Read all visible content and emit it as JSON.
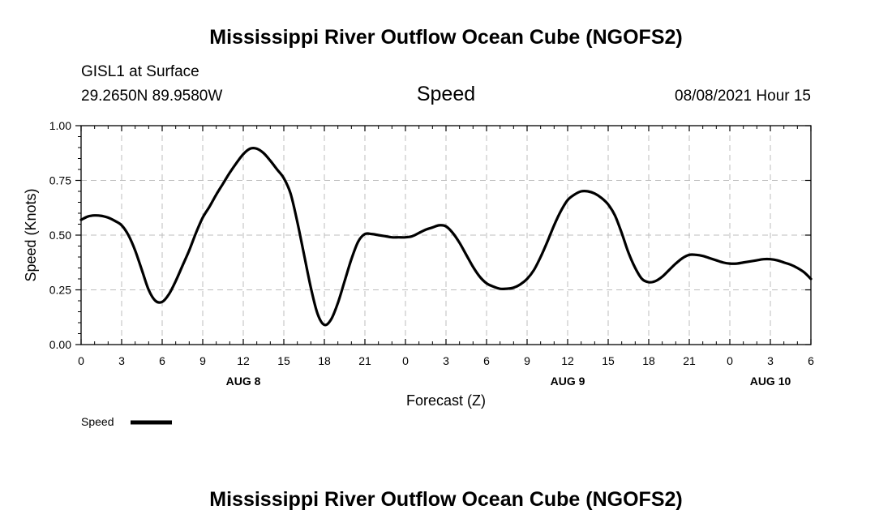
{
  "page": {
    "title": "Mississippi River Outflow Ocean Cube (NGOFS2)",
    "footer_title": "Mississippi River Outflow Ocean Cube (NGOFS2)",
    "station": "GISL1 at Surface",
    "coords": "29.2650N  89.9580W",
    "datetime": "08/08/2021 Hour 15"
  },
  "chart_data": {
    "type": "line",
    "title": "Speed",
    "xlabel": "Forecast (Z)",
    "ylabel": "Speed (Knots)",
    "xlim": [
      0,
      54
    ],
    "ylim": [
      0,
      1
    ],
    "grid": true,
    "legend": "bottom-left",
    "y_ticks": [
      0,
      0.25,
      0.5,
      0.75,
      1.0
    ],
    "y_tick_labels": [
      "0.00",
      "0.25",
      "0.50",
      "0.75",
      "1.00"
    ],
    "x_ticks": [
      0,
      3,
      6,
      9,
      12,
      15,
      18,
      21,
      24,
      27,
      30,
      33,
      36,
      39,
      42,
      45,
      48,
      51,
      54
    ],
    "x_tick_labels": [
      "0",
      "3",
      "6",
      "9",
      "12",
      "15",
      "18",
      "21",
      "0",
      "3",
      "6",
      "9",
      "12",
      "15",
      "18",
      "21",
      "0",
      "3",
      "6"
    ],
    "date_labels": [
      {
        "x": 12,
        "label": "AUG 8"
      },
      {
        "x": 36,
        "label": "AUG 9"
      },
      {
        "x": 51,
        "label": "AUG 10"
      }
    ],
    "series": [
      {
        "name": "Speed",
        "color": "#000000",
        "x": [
          0,
          0.5,
          1,
          1.5,
          2,
          2.5,
          3,
          3.5,
          4,
          4.5,
          5,
          5.5,
          6,
          6.5,
          7,
          7.5,
          8,
          8.5,
          9,
          9.5,
          10,
          10.5,
          11,
          11.5,
          12,
          12.5,
          13,
          13.5,
          14,
          14.5,
          15,
          15.5,
          16,
          16.5,
          17,
          17.5,
          18,
          18.5,
          19,
          19.5,
          20,
          20.5,
          21,
          21.5,
          22,
          22.5,
          23,
          23.5,
          24,
          24.5,
          25,
          25.5,
          26,
          26.5,
          27,
          27.5,
          28,
          28.5,
          29,
          29.5,
          30,
          30.5,
          31,
          31.5,
          32,
          32.5,
          33,
          33.5,
          34,
          34.5,
          35,
          35.5,
          36,
          36.5,
          37,
          37.5,
          38,
          38.5,
          39,
          39.5,
          40,
          40.5,
          41,
          41.5,
          42,
          42.5,
          43,
          43.5,
          44,
          44.5,
          45,
          45.5,
          46,
          46.5,
          47,
          47.5,
          48,
          48.5,
          49,
          49.5,
          50,
          50.5,
          51,
          51.5,
          52,
          52.5,
          53,
          53.5,
          54
        ],
        "values": [
          0.57,
          0.585,
          0.59,
          0.588,
          0.58,
          0.565,
          0.545,
          0.5,
          0.43,
          0.34,
          0.25,
          0.2,
          0.195,
          0.23,
          0.29,
          0.36,
          0.43,
          0.51,
          0.58,
          0.63,
          0.685,
          0.735,
          0.785,
          0.83,
          0.87,
          0.895,
          0.895,
          0.875,
          0.84,
          0.8,
          0.76,
          0.69,
          0.56,
          0.41,
          0.26,
          0.14,
          0.09,
          0.115,
          0.19,
          0.29,
          0.39,
          0.47,
          0.505,
          0.505,
          0.5,
          0.495,
          0.49,
          0.49,
          0.49,
          0.495,
          0.51,
          0.525,
          0.535,
          0.545,
          0.54,
          0.51,
          0.465,
          0.41,
          0.355,
          0.31,
          0.28,
          0.265,
          0.255,
          0.255,
          0.26,
          0.275,
          0.3,
          0.34,
          0.4,
          0.47,
          0.545,
          0.61,
          0.66,
          0.685,
          0.7,
          0.7,
          0.69,
          0.67,
          0.64,
          0.59,
          0.51,
          0.42,
          0.35,
          0.3,
          0.285,
          0.29,
          0.31,
          0.34,
          0.37,
          0.395,
          0.41,
          0.41,
          0.405,
          0.395,
          0.385,
          0.375,
          0.37,
          0.37,
          0.375,
          0.38,
          0.385,
          0.39,
          0.39,
          0.385,
          0.375,
          0.365,
          0.35,
          0.33,
          0.3
        ]
      }
    ]
  }
}
